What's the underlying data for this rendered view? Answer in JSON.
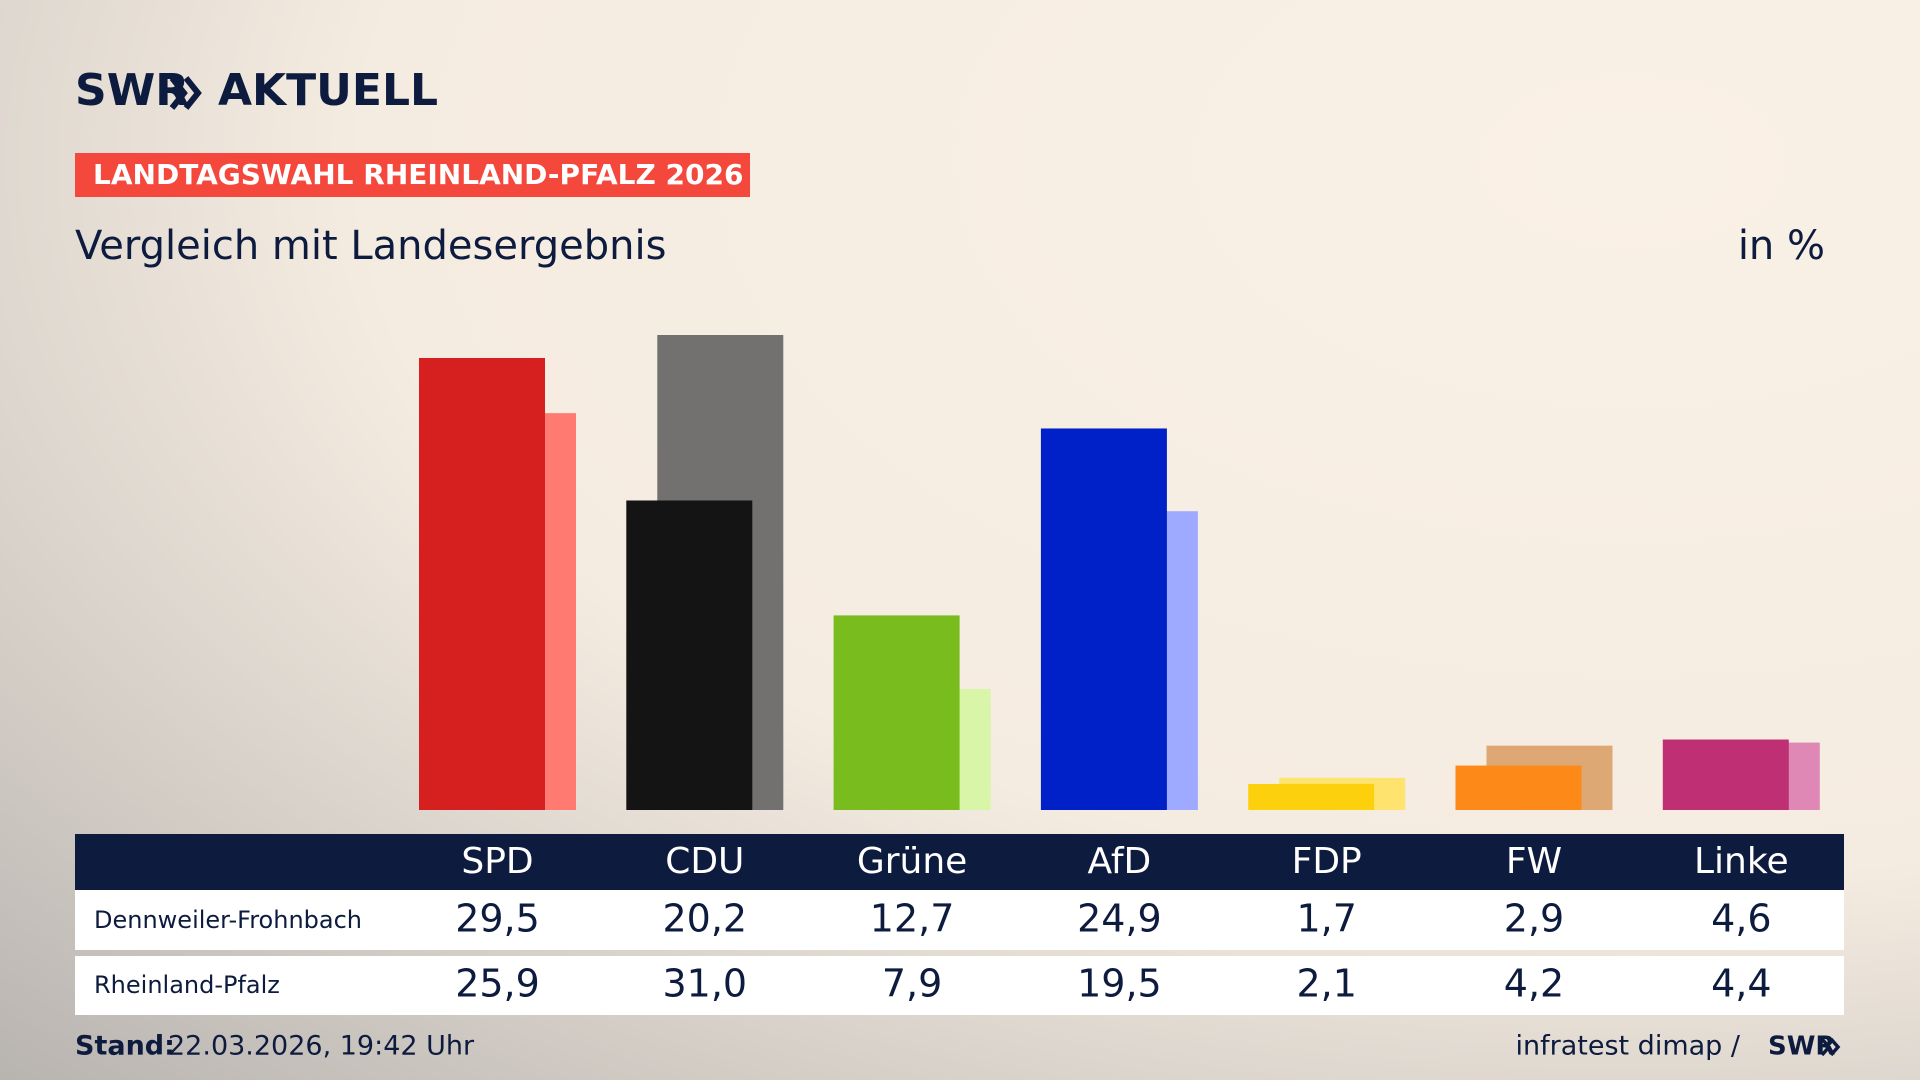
{
  "header": {
    "logo_left": "SWR",
    "logo_right": "AKTUELL",
    "kicker": "LANDTAGSWAHL RHEINLAND-PFALZ 2026"
  },
  "chart_data": {
    "type": "bar",
    "title": "Vergleich mit Landesergebnis",
    "unit": "in %",
    "categories": [
      "SPD",
      "CDU",
      "Grüne",
      "AfD",
      "FDP",
      "FW",
      "Linke"
    ],
    "series": [
      {
        "name": "Dennweiler-Frohnbach",
        "colors": [
          "#d61f1f",
          "#141414",
          "#78bc1e",
          "#0020c8",
          "#fdd00e",
          "#fd8a18",
          "#bf2f73"
        ],
        "values": [
          29.5,
          20.2,
          12.7,
          24.9,
          1.7,
          2.9,
          4.6
        ],
        "value_labels": [
          "29,5",
          "20,2",
          "12,7",
          "24,9",
          "1,7",
          "2,9",
          "4,6"
        ]
      },
      {
        "name": "Rheinland-Pfalz",
        "colors": [
          "#ff7a70",
          "#727170",
          "#d8f5a8",
          "#9eaaff",
          "#fee46e",
          "#dda873",
          "#df88b5"
        ],
        "values": [
          25.9,
          31.0,
          7.9,
          19.5,
          2.1,
          4.2,
          4.4
        ],
        "value_labels": [
          "25,9",
          "31,0",
          "7,9",
          "19,5",
          "2,1",
          "4,2",
          "4,4"
        ]
      }
    ]
  },
  "footer": {
    "stand_label": "Stand:",
    "stand": "22.03.2026, 19:42 Uhr",
    "source": "infratest dimap /",
    "source_logo": "SWR"
  }
}
